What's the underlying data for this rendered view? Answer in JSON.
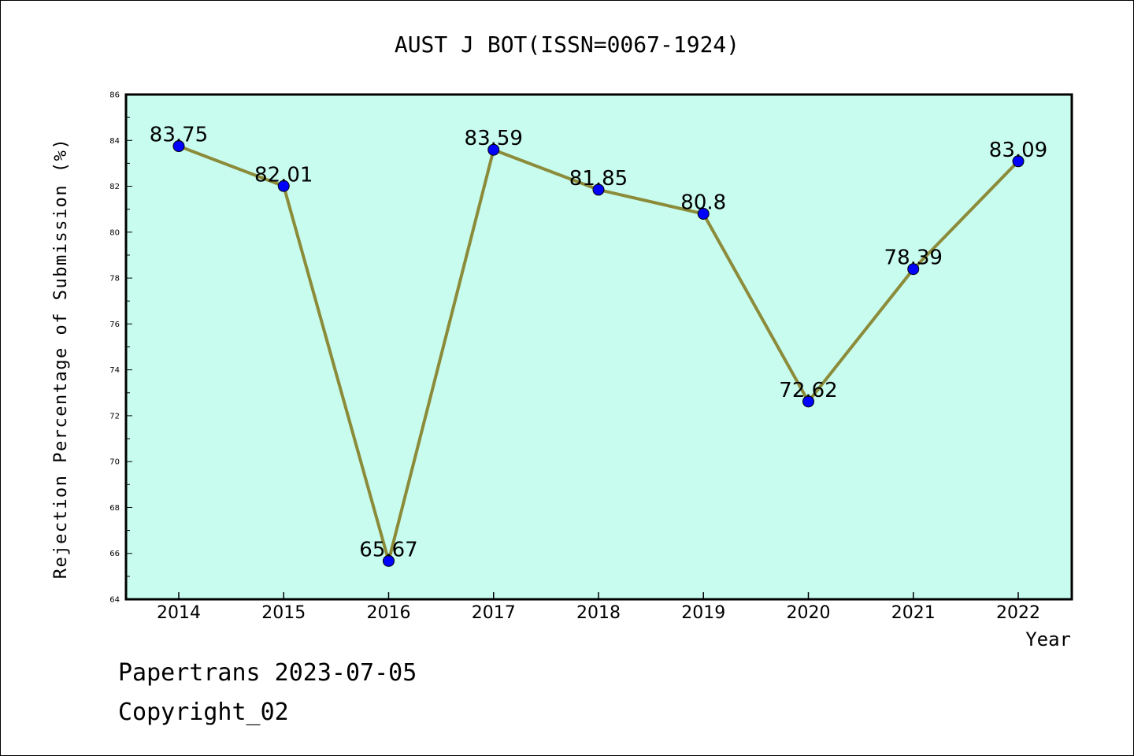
{
  "chart_data": {
    "type": "line",
    "title": "AUST J BOT(ISSN=0067-1924)",
    "xlabel": "Year",
    "ylabel": "Rejection Percentage of Submission (%)",
    "categories": [
      "2014",
      "2015",
      "2016",
      "2017",
      "2018",
      "2019",
      "2020",
      "2021",
      "2022"
    ],
    "values": [
      83.75,
      82.01,
      65.67,
      83.59,
      81.85,
      80.8,
      72.62,
      78.39,
      83.09
    ],
    "data_labels": [
      "83.75",
      "82.01",
      "65.67",
      "83.59",
      "81.85",
      "80.8",
      "72.62",
      "78.39",
      "83.09"
    ],
    "ylim": [
      64,
      86
    ],
    "yticks": [
      "64",
      "66",
      "68",
      "70",
      "72",
      "74",
      "76",
      "78",
      "80",
      "82",
      "84",
      "86"
    ],
    "grid": false,
    "legend": "none",
    "colors": {
      "plot_background": "#c8fcee",
      "line": "#8b8b3a",
      "marker": "#0000ff"
    }
  },
  "footer": {
    "line1": "Papertrans 2023-07-05",
    "line2": "Copyright_02"
  }
}
